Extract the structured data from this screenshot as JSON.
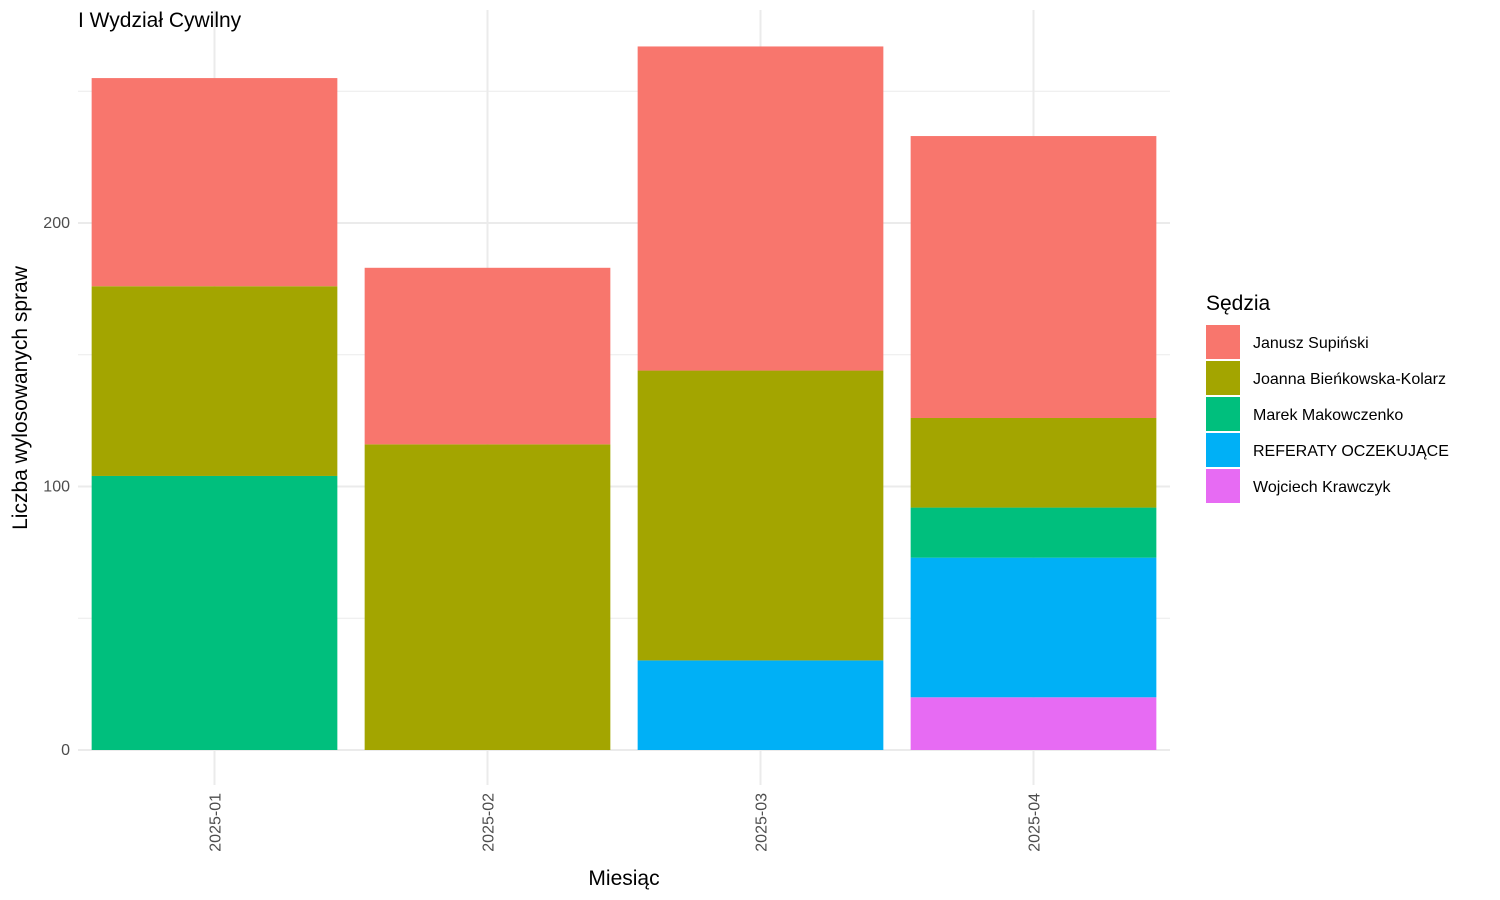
{
  "chart_data": {
    "type": "bar",
    "stacked": true,
    "title": "I Wydział Cywilny",
    "xlabel": "Miesiąc",
    "ylabel": "Liczba wylosowanych spraw",
    "categories": [
      "2025-01",
      "2025-02",
      "2025-03",
      "2025-04"
    ],
    "ylim": [
      0,
      280
    ],
    "yticks": [
      0,
      100,
      200
    ],
    "grid": true,
    "legend": {
      "title": "Sędzia",
      "position": "right"
    },
    "series": [
      {
        "name": "Janusz Supiński",
        "color": "#F8766D",
        "values": [
          79,
          67,
          123,
          107
        ]
      },
      {
        "name": "Joanna Bieńkowska-Kolarz",
        "color": "#A3A500",
        "values": [
          72,
          116,
          110,
          34
        ]
      },
      {
        "name": "Marek Makowczenko",
        "color": "#00BF7D",
        "values": [
          104,
          0,
          0,
          19
        ]
      },
      {
        "name": "REFERATY OCZEKUJĄCE",
        "color": "#00B0F6",
        "values": [
          0,
          0,
          34,
          53
        ]
      },
      {
        "name": "Wojciech Krawczyk",
        "color": "#E76BF3",
        "values": [
          0,
          0,
          0,
          20
        ]
      }
    ],
    "stack_order_bottom_to_top": [
      "Wojciech Krawczyk",
      "REFERATY OCZEKUJĄCE",
      "Marek Makowczenko",
      "Joanna Bieńkowska-Kolarz",
      "Janusz Supiński"
    ]
  }
}
